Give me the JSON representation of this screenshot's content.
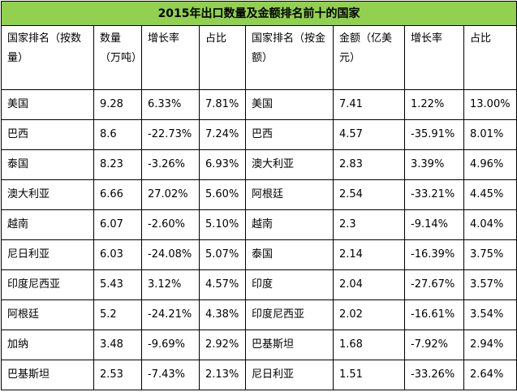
{
  "title": "2015年出口数量及金额排名前十的国家",
  "headers": [
    "国家排名（按数量）",
    "数量（万吨）",
    "增长率",
    "占比",
    "国家排名（按金额）",
    "金额（亿美元）",
    "增长率",
    "占比"
  ],
  "rows": [
    [
      "美国",
      "9.28",
      "6.33%",
      "7.81%",
      "美国",
      "7.41",
      "1.22%",
      "13.00%"
    ],
    [
      "巴西",
      "8.6",
      "-22.73%",
      "7.24%",
      "巴西",
      "4.57",
      "-35.91%",
      "8.01%"
    ],
    [
      "泰国",
      "8.23",
      "-3.26%",
      "6.93%",
      "澳大利亚",
      "2.83",
      "3.39%",
      "4.96%"
    ],
    [
      "澳大利亚",
      "6.66",
      "27.02%",
      "5.60%",
      "阿根廷",
      "2.54",
      "-33.21%",
      "4.45%"
    ],
    [
      "越南",
      "6.07",
      "-2.60%",
      "5.10%",
      "越南",
      "2.3",
      "-9.14%",
      "4.04%"
    ],
    [
      "尼日利亚",
      "6.03",
      "-24.08%",
      "5.07%",
      "泰国",
      "2.14",
      "-16.39%",
      "3.75%"
    ],
    [
      "印度尼西亚",
      "5.43",
      "3.12%",
      "4.57%",
      "印度",
      "2.04",
      "-27.67%",
      "3.57%"
    ],
    [
      "阿根廷",
      "5.2",
      "-24.21%",
      "4.38%",
      "印度尼西亚",
      "2.02",
      "-16.61%",
      "3.54%"
    ],
    [
      "加纳",
      "3.48",
      "-9.69%",
      "2.92%",
      "巴基斯坦",
      "1.68",
      "-7.92%",
      "2.94%"
    ],
    [
      "巴基斯坦",
      "2.53",
      "-7.43%",
      "2.13%",
      "尼日利亚",
      "1.51",
      "-33.26%",
      "2.64%"
    ]
  ],
  "colors": {
    "title_background": "#92d050",
    "border": "#000000"
  }
}
